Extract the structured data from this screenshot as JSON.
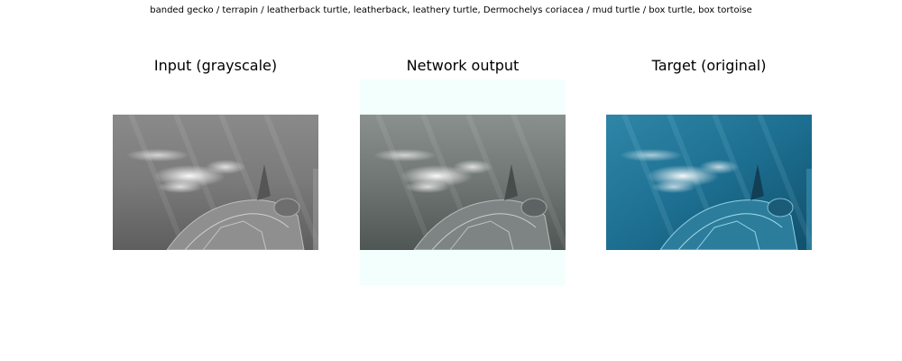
{
  "figure": {
    "suptitle": "banded gecko / terrapin / leatherback turtle, leatherback, leathery turtle, Dermochelys coriacea / mud turtle / box turtle, box tortoise"
  },
  "panels": [
    {
      "title": "Input (grayscale)",
      "image": "sea-turtle-photo-grayscale"
    },
    {
      "title": "Network output",
      "image": "sea-turtle-photo-colorized-output"
    },
    {
      "title": "Target (original)",
      "image": "sea-turtle-photo-original-color"
    }
  ],
  "colors": {
    "output_padding": "#f3fffd",
    "target_water": "#1d6f91"
  }
}
